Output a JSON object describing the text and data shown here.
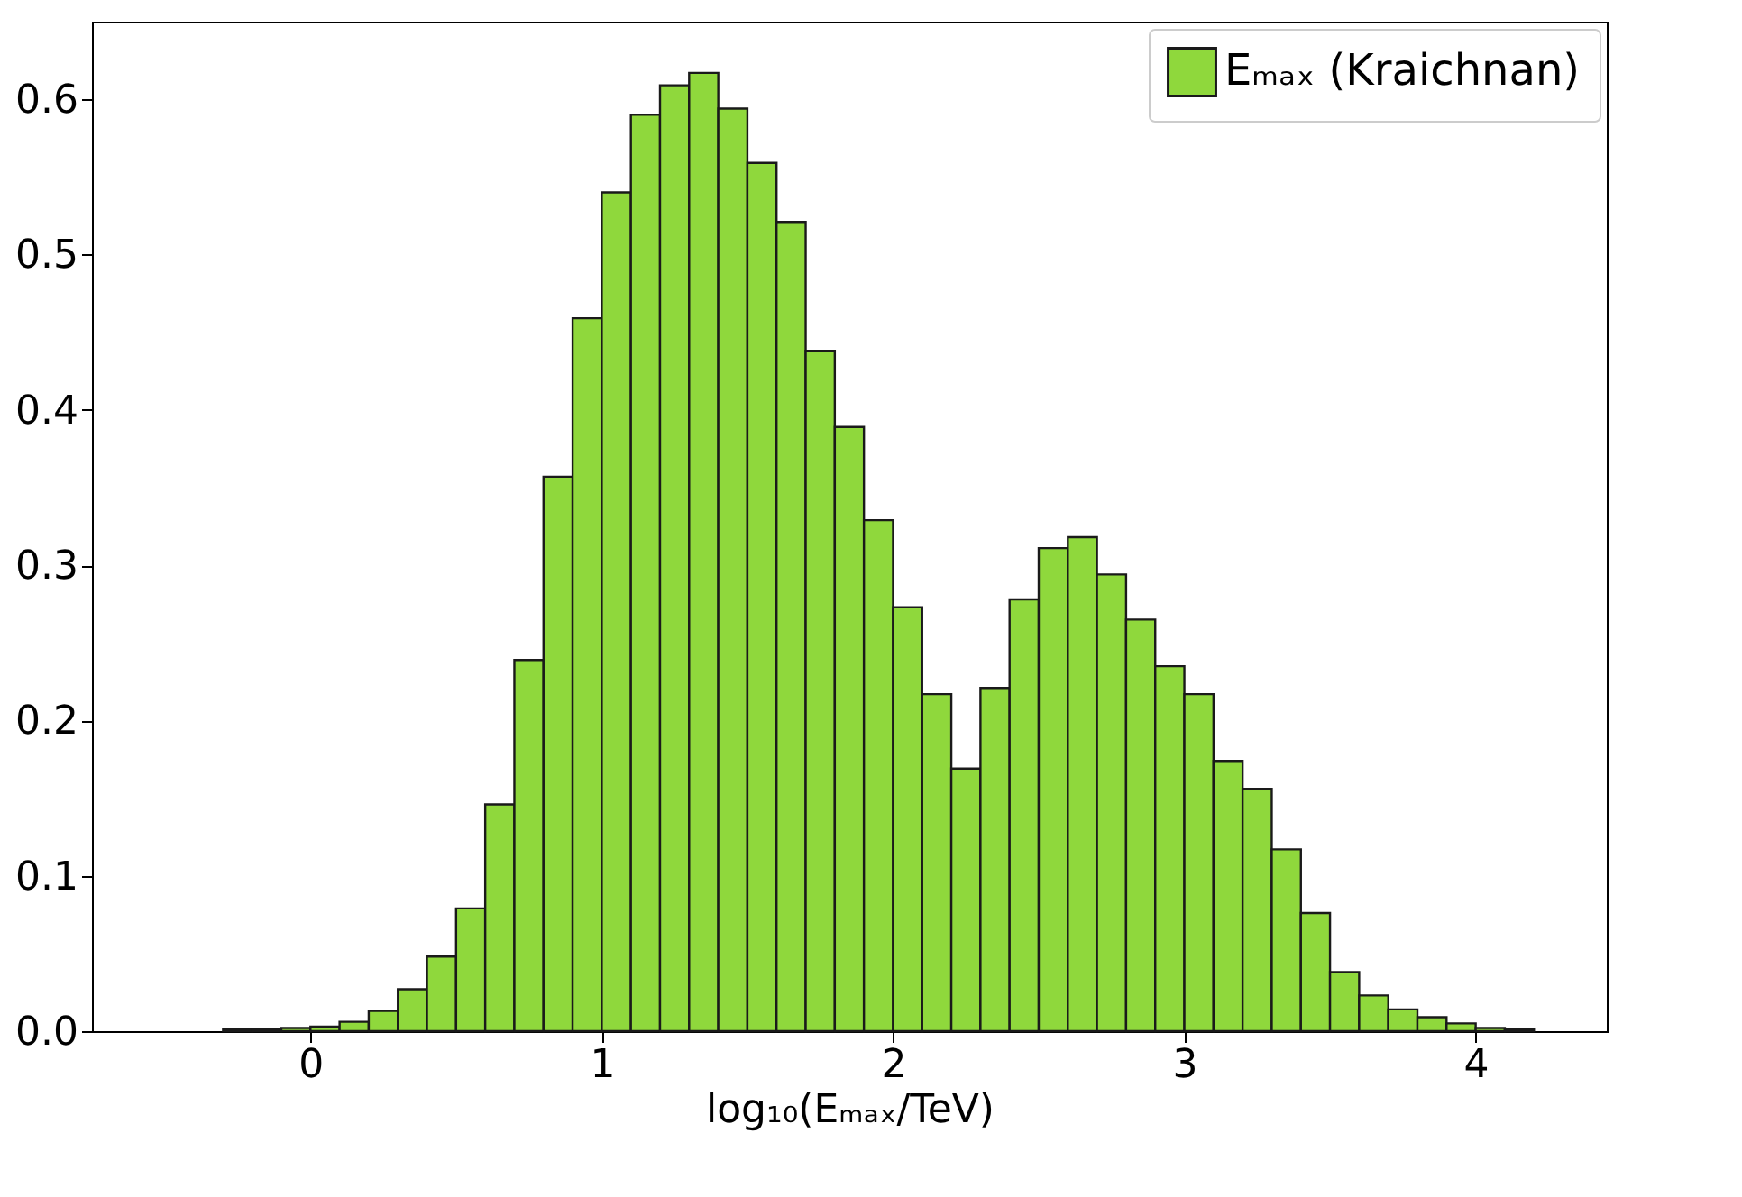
{
  "chart_data": {
    "type": "histogram",
    "xlabel": "log₁₀(Eₘₐₓ/TeV)",
    "bins": [
      -0.3,
      -0.2,
      -0.1,
      0,
      0.1,
      0.2,
      0.3,
      0.4,
      0.5,
      0.6,
      0.7,
      0.8,
      0.9,
      1.0,
      1.1,
      1.2,
      1.3,
      1.4,
      1.5,
      1.6,
      1.7,
      1.8,
      1.9,
      2.0,
      2.1,
      2.2,
      2.3,
      2.4,
      2.5,
      2.6,
      2.7,
      2.8,
      2.9,
      3.0,
      3.1,
      3.2,
      3.3,
      3.4,
      3.5,
      3.6,
      3.7,
      3.8,
      3.9,
      4.0,
      4.1,
      4.2
    ],
    "series": [
      {
        "name": "Eₘₐₓ (Kraichnan)",
        "color": "#8fd83c",
        "values": [
          0.001,
          0.001,
          0.002,
          0.003,
          0.006,
          0.013,
          0.027,
          0.048,
          0.079,
          0.146,
          0.239,
          0.357,
          0.459,
          0.54,
          0.59,
          0.609,
          0.617,
          0.594,
          0.559,
          0.521,
          0.438,
          0.389,
          0.329,
          0.273,
          0.217,
          0.169,
          0.221,
          0.278,
          0.311,
          0.318,
          0.294,
          0.265,
          0.235,
          0.217,
          0.174,
          0.156,
          0.117,
          0.076,
          0.038,
          0.023,
          0.014,
          0.009,
          0.005,
          0.002,
          0.001
        ]
      }
    ],
    "xlim": [
      -0.75,
      4.45
    ],
    "xticks": [
      0,
      1,
      2,
      3,
      4
    ],
    "ylim": [
      0,
      0.65
    ],
    "yticks": [
      {
        "value": 0,
        "label": "0.0"
      },
      0.1,
      0.2,
      0.3,
      0.4,
      0.5,
      0.6
    ],
    "legend": "top right",
    "grid": false
  }
}
